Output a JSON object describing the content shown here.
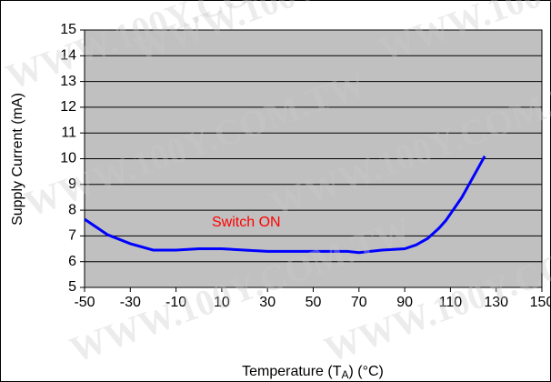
{
  "chart_data": {
    "type": "line",
    "xlabel": {
      "text": "Temperature (T",
      "sub": "A",
      "suffix": ")  (°C)"
    },
    "ylabel": "Supply Current (mA)",
    "annotation": "Switch ON",
    "watermark": "WWW.100Y.COM.TW",
    "x": [
      -50,
      -45,
      -40,
      -30,
      -20,
      -10,
      0,
      10,
      20,
      30,
      40,
      50,
      60,
      65,
      70,
      80,
      90,
      95,
      100,
      105,
      108,
      115,
      125
    ],
    "series": [
      {
        "name": "Switch ON",
        "color": "#0000ff",
        "values": [
          7.65,
          7.35,
          7.05,
          6.7,
          6.45,
          6.45,
          6.5,
          6.5,
          6.45,
          6.4,
          6.4,
          6.4,
          6.4,
          6.4,
          6.35,
          6.45,
          6.5,
          6.65,
          6.9,
          7.3,
          7.6,
          8.5,
          10.1
        ]
      }
    ],
    "xlim": [
      -50,
      150
    ],
    "xticks": [
      -50,
      -30,
      -10,
      10,
      30,
      50,
      70,
      90,
      110,
      130,
      150
    ],
    "ylim": [
      5,
      15
    ],
    "yticks": [
      5,
      6,
      7,
      8,
      9,
      10,
      11,
      12,
      13,
      14,
      15
    ],
    "grid": true,
    "background": "#c0c0c0",
    "annotation_color": "#ff0000"
  }
}
